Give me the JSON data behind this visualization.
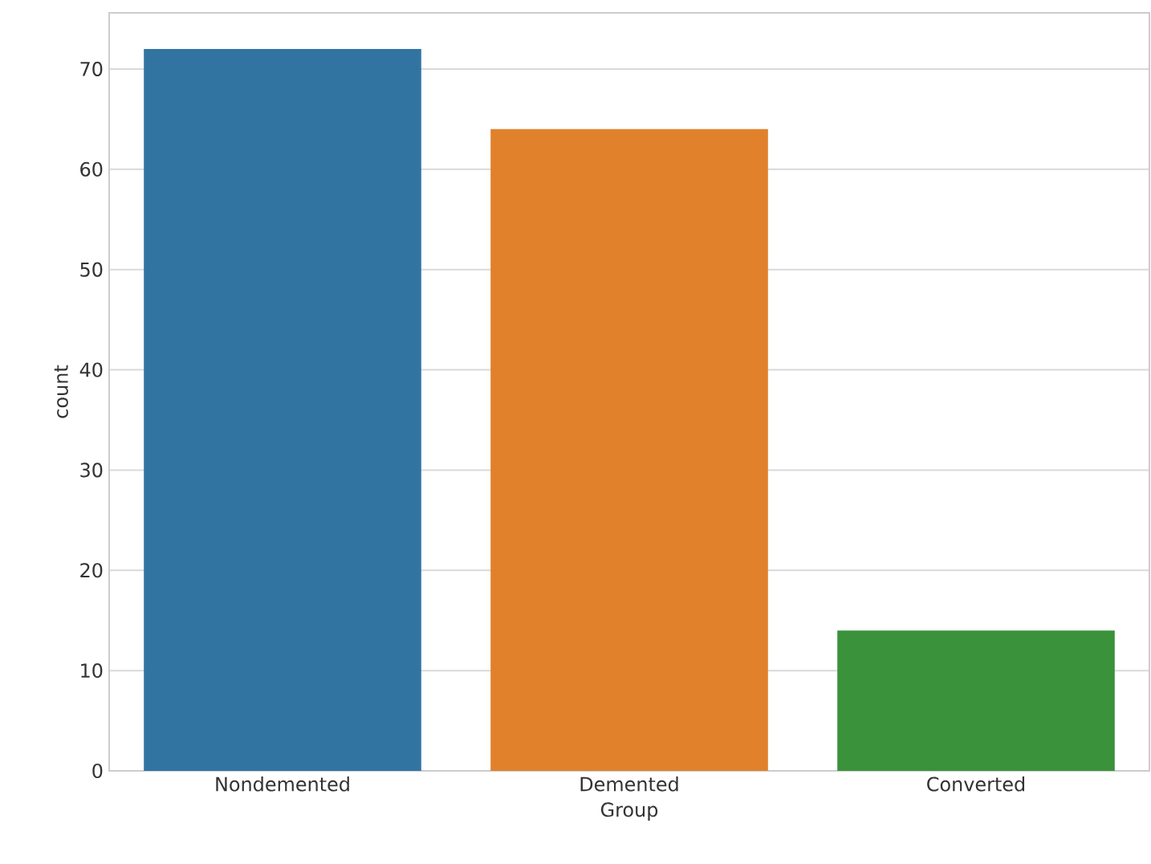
{
  "chart_data": {
    "type": "bar",
    "xlabel": "Group",
    "ylabel": "count",
    "categories": [
      "Nondemented",
      "Demented",
      "Converted"
    ],
    "values": [
      72,
      64,
      14
    ],
    "colors": [
      "#3274a1",
      "#e1812c",
      "#3a923a"
    ],
    "ylim": [
      0,
      75.6
    ],
    "yticks": [
      0,
      10,
      20,
      30,
      40,
      50,
      60,
      70
    ],
    "grid": "y"
  }
}
